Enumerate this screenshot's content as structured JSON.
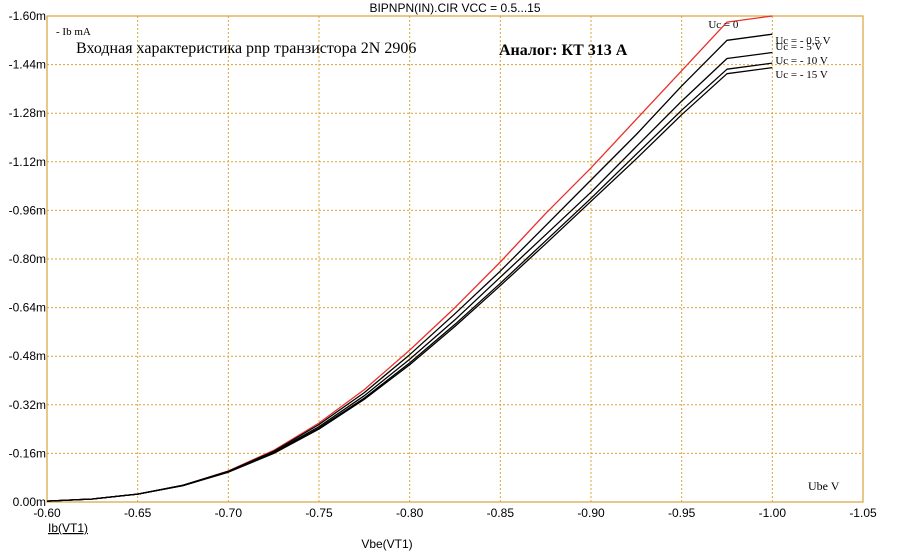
{
  "chart_data": {
    "type": "line",
    "title": "BIPNPN(IN).CIR VCC = 0.5...15",
    "xlabel": "Vbe(VT1)",
    "ylabel": "Ib(VT1)",
    "x_unit_label": "Ube V",
    "y_unit_label": "- Ib mA",
    "annotation_main": "Входная характеристика pnp транзистора 2N 2906",
    "annotation_analog": "Аналог: КТ 313 А",
    "xlim": [
      -0.6,
      -1.05
    ],
    "ylim": [
      0,
      -1.6
    ],
    "xticks": [
      "-0.60",
      "-0.65",
      "-0.70",
      "-0.75",
      "-0.80",
      "-0.85",
      "-0.90",
      "-0.95",
      "-1.00",
      "-1.05"
    ],
    "yticks": [
      "0.00m",
      "-0.16m",
      "-0.32m",
      "-0.48m",
      "-0.64m",
      "-0.80m",
      "-0.96m",
      "-1.12m",
      "-1.28m",
      "-1.44m",
      "-1.60m"
    ],
    "grid": true,
    "colors": {
      "grid": "#d9a43a",
      "axis": "#d9a43a",
      "first_series": "#e8302a",
      "other_series": "#000000"
    },
    "x": [
      -0.6,
      -0.625,
      -0.65,
      -0.675,
      -0.7,
      -0.725,
      -0.75,
      -0.775,
      -0.8,
      -0.825,
      -0.85,
      -0.875,
      -0.9,
      -0.925,
      -0.95,
      -0.975,
      -1.0
    ],
    "series": [
      {
        "name": "Uc = 0",
        "values": [
          -0.003,
          -0.01,
          -0.026,
          -0.055,
          -0.102,
          -0.17,
          -0.26,
          -0.37,
          -0.5,
          -0.64,
          -0.79,
          -0.95,
          -1.1,
          -1.26,
          -1.42,
          -1.58,
          -1.6
        ]
      },
      {
        "name": "Uc = - 0,5 V",
        "values": [
          -0.003,
          -0.01,
          -0.026,
          -0.055,
          -0.101,
          -0.167,
          -0.255,
          -0.36,
          -0.485,
          -0.62,
          -0.76,
          -0.91,
          -1.06,
          -1.21,
          -1.37,
          -1.52,
          -1.54
        ]
      },
      {
        "name": "Uc = - 5 V",
        "values": [
          -0.003,
          -0.01,
          -0.026,
          -0.055,
          -0.1,
          -0.164,
          -0.248,
          -0.35,
          -0.47,
          -0.6,
          -0.74,
          -0.88,
          -1.02,
          -1.17,
          -1.32,
          -1.46,
          -1.48
        ]
      },
      {
        "name": "Uc = - 10 V",
        "values": [
          -0.003,
          -0.01,
          -0.026,
          -0.054,
          -0.099,
          -0.161,
          -0.243,
          -0.342,
          -0.458,
          -0.585,
          -0.72,
          -0.86,
          -1.0,
          -1.145,
          -1.29,
          -1.425,
          -1.445
        ]
      },
      {
        "name": "Uc = - 15 V",
        "values": [
          -0.003,
          -0.01,
          -0.026,
          -0.054,
          -0.098,
          -0.16,
          -0.24,
          -0.338,
          -0.452,
          -0.578,
          -0.712,
          -0.85,
          -0.99,
          -1.13,
          -1.275,
          -1.41,
          -1.43
        ]
      }
    ]
  }
}
